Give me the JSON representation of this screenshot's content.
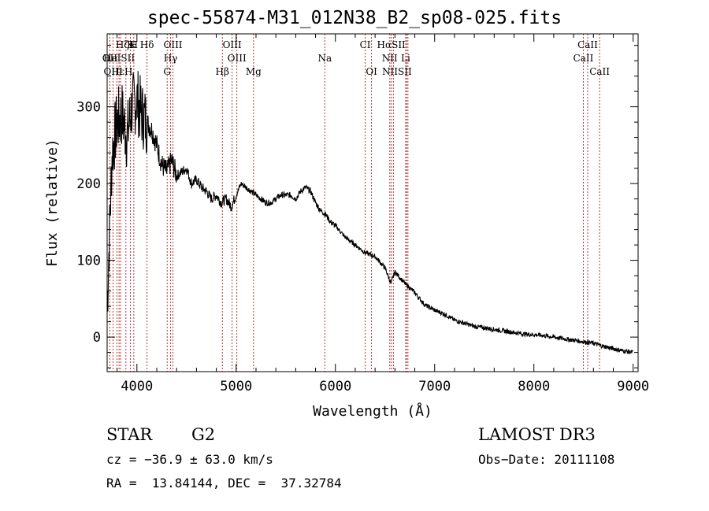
{
  "chart_data": {
    "type": "line",
    "title": "spec-55874-M31_012N38_B2_sp08-025.fits",
    "xlabel": "Wavelength (Å)",
    "ylabel": "Flux (relative)",
    "xlim": [
      3700,
      9050
    ],
    "ylim": [
      -45,
      395
    ],
    "xticks": [
      4000,
      5000,
      6000,
      7000,
      8000,
      9000
    ],
    "yticks": [
      0,
      100,
      200,
      300
    ],
    "grid": false,
    "series": [
      {
        "name": "flux",
        "color": "#000000",
        "x": [
          3700,
          3750,
          3800,
          3850,
          3900,
          3950,
          4000,
          4050,
          4100,
          4150,
          4200,
          4250,
          4300,
          4350,
          4400,
          4450,
          4500,
          4550,
          4600,
          4650,
          4700,
          4750,
          4800,
          4850,
          4900,
          4950,
          5000,
          5050,
          5100,
          5150,
          5200,
          5250,
          5300,
          5350,
          5400,
          5450,
          5500,
          5550,
          5600,
          5650,
          5700,
          5750,
          5800,
          5850,
          5900,
          5950,
          6000,
          6100,
          6200,
          6300,
          6400,
          6500,
          6560,
          6600,
          6700,
          6800,
          6900,
          7000,
          7100,
          7200,
          7300,
          7400,
          7500,
          7600,
          7700,
          7800,
          7850,
          7900,
          8000,
          8100,
          8200,
          8300,
          8400,
          8500,
          8600,
          8700,
          8800,
          8900,
          9000
        ],
        "y": [
          40,
          240,
          280,
          290,
          260,
          300,
          310,
          290,
          280,
          270,
          250,
          225,
          215,
          230,
          210,
          215,
          220,
          200,
          205,
          195,
          190,
          180,
          185,
          175,
          180,
          170,
          185,
          200,
          195,
          190,
          185,
          180,
          175,
          175,
          180,
          185,
          185,
          185,
          180,
          190,
          195,
          190,
          175,
          165,
          160,
          150,
          145,
          130,
          120,
          110,
          105,
          90,
          70,
          85,
          70,
          58,
          42,
          35,
          30,
          22,
          18,
          14,
          12,
          10,
          8,
          6,
          5,
          4,
          3,
          2,
          0,
          -2,
          -4,
          -6,
          -8,
          -12,
          -15,
          -18,
          -20
        ]
      }
    ],
    "lines": [
      {
        "label": "Hδ",
        "x": 4102,
        "row": 1
      },
      {
        "label": "K",
        "x": 3934,
        "row": 1
      },
      {
        "label": "H",
        "x": 3969,
        "row": 1
      },
      {
        "label": "HζK",
        "x": 3889,
        "row": 1
      },
      {
        "label": "OIII",
        "x": 4363,
        "row": 1
      },
      {
        "label": "OIII",
        "x": 4959,
        "row": 1
      },
      {
        "label": "CI",
        "x": 6300,
        "row": 1
      },
      {
        "label": "HαSII",
        "x": 6563,
        "row": 1
      },
      {
        "label": "CaII",
        "x": 8542,
        "row": 1
      },
      {
        "label": "OII",
        "x": 3727,
        "row": 2
      },
      {
        "label": "HeISII",
        "x": 3820,
        "row": 2
      },
      {
        "label": "Hγ",
        "x": 4340,
        "row": 2
      },
      {
        "label": "OIII",
        "x": 5007,
        "row": 2
      },
      {
        "label": "Na",
        "x": 5893,
        "row": 2
      },
      {
        "label": "NII",
        "x": 6548,
        "row": 2
      },
      {
        "label": "Li",
        "x": 6708,
        "row": 2
      },
      {
        "label": "CaII",
        "x": 8498,
        "row": 2
      },
      {
        "label": "OIII",
        "x": 3760,
        "row": 3
      },
      {
        "label": "HεH",
        "x": 3850,
        "row": 3
      },
      {
        "label": "G",
        "x": 4305,
        "row": 3
      },
      {
        "label": "Hβ",
        "x": 4861,
        "row": 3
      },
      {
        "label": "Mg",
        "x": 5175,
        "row": 3
      },
      {
        "label": "OI",
        "x": 6364,
        "row": 3
      },
      {
        "label": "NIISII",
        "x": 6620,
        "row": 3
      },
      {
        "label": "CaII",
        "x": 8662,
        "row": 3
      }
    ],
    "line_x_positions": [
      3727,
      3760,
      3798,
      3820,
      3835,
      3889,
      3934,
      3969,
      4102,
      4305,
      4340,
      4363,
      4861,
      4959,
      5007,
      5175,
      5893,
      6300,
      6364,
      6548,
      6563,
      6584,
      6708,
      6717,
      6731,
      8498,
      8542,
      8662
    ],
    "line_color": "#b22222"
  },
  "info": {
    "class": "STAR",
    "subclass": "G2",
    "survey": "LAMOST DR3",
    "cz": "cz = −36.9 ± 63.0 km/s",
    "obs_date": "Obs−Date: 20111108",
    "radec": "RA =  13.84144, DEC =  37.32784"
  }
}
